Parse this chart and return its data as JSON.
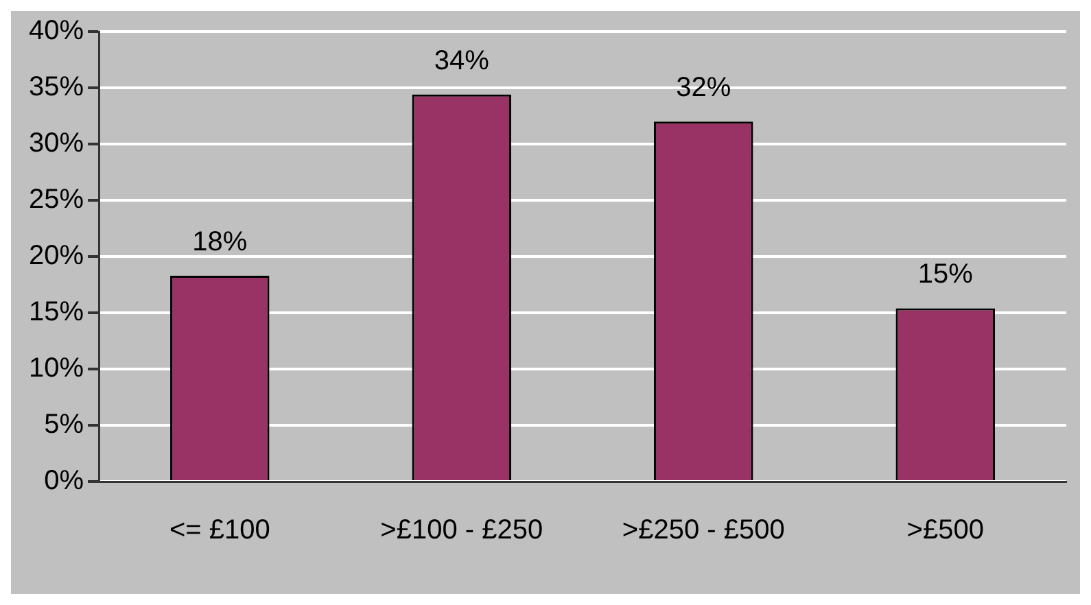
{
  "chart_data": {
    "type": "bar",
    "categories": [
      "<= £100",
      ">£100 - £250",
      ">£250 - £500",
      ">£500"
    ],
    "values": [
      18.3,
      34.4,
      32,
      15.4
    ],
    "color": "#993366",
    "value_labels": [
      "18%",
      "34%",
      "32%",
      "15%"
    ],
    "ylim": [
      0,
      40
    ],
    "yticks": [
      {
        "value": 0,
        "label": "0%"
      },
      {
        "value": 5,
        "label": "5%"
      },
      {
        "value": 10,
        "label": "10%"
      },
      {
        "value": 15,
        "label": "15%"
      },
      {
        "value": 20,
        "label": "20%"
      },
      {
        "value": 25,
        "label": "25%"
      },
      {
        "value": 30,
        "label": "30%"
      },
      {
        "value": 35,
        "label": "35%"
      },
      {
        "value": 40,
        "label": "40%"
      }
    ],
    "grid": "y",
    "legend": false
  }
}
